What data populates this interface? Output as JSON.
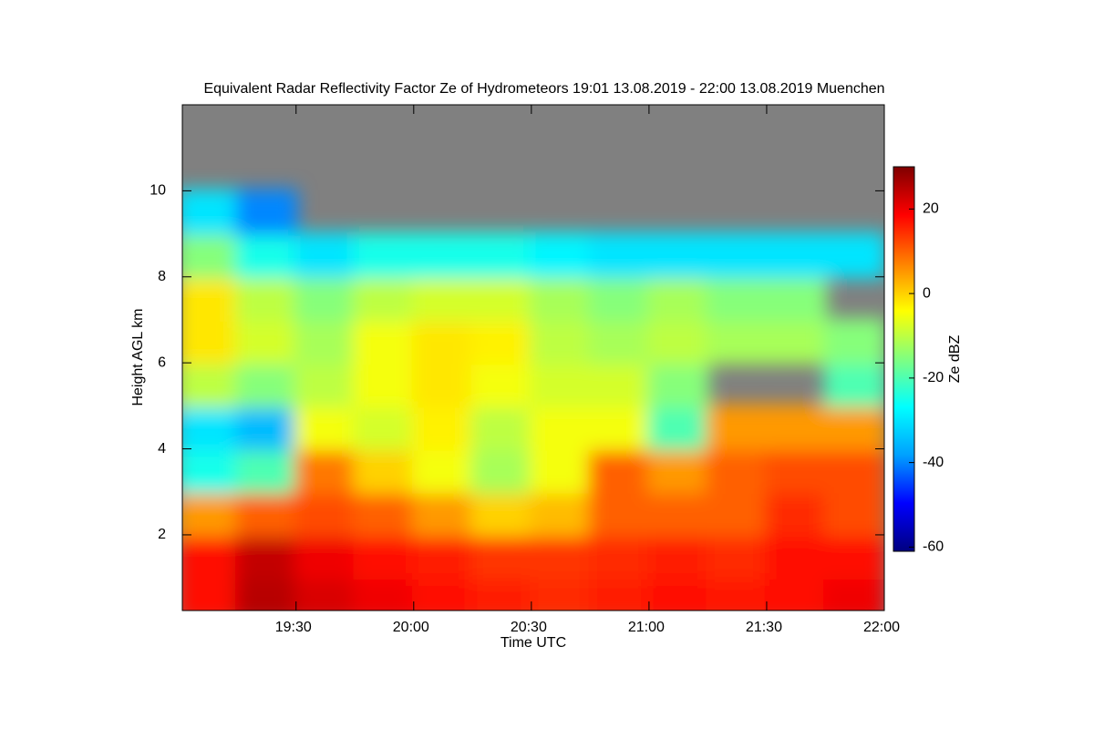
{
  "chart_data": {
    "type": "heatmap",
    "title": "Equivalent Radar Reflectivity Factor Ze of Hydrometeors   19:01 13.08.2019 - 22:00 13.08.2019 Muenchen",
    "x_label": "Time UTC",
    "y_label": "Height AGL km",
    "colorbar_label": "Ze dBZ",
    "xlim": [
      19.0167,
      22.0
    ],
    "xticks": [
      {
        "value": 19.5,
        "label": "19:30"
      },
      {
        "value": 20.0,
        "label": "20:00"
      },
      {
        "value": 20.5,
        "label": "20:30"
      },
      {
        "value": 21.0,
        "label": "21:00"
      },
      {
        "value": 21.5,
        "label": "21:30"
      },
      {
        "value": 22.0,
        "label": "22:00"
      }
    ],
    "ylim": [
      0.24,
      12
    ],
    "yticks": [
      2,
      4,
      6,
      8,
      10
    ],
    "zlim": [
      -61,
      30
    ],
    "zticks": [
      -60,
      -40,
      -20,
      0,
      20
    ],
    "colormap": [
      "#00007f",
      "#0000ff",
      "#00a0ff",
      "#00ffff",
      "#80ff80",
      "#ffff00",
      "#ff8000",
      "#ff0000",
      "#7f0000"
    ],
    "nodata_color": "#808080",
    "x": [
      19.125,
      19.375,
      19.625,
      19.875,
      20.125,
      20.375,
      20.625,
      20.875,
      21.125,
      21.375,
      21.625,
      21.875
    ],
    "y": [
      0.5,
      1.5,
      2.5,
      3.5,
      4.5,
      5.5,
      6.5,
      7.5,
      8.5,
      9.5,
      10.5,
      11.5
    ],
    "z": [
      [
        18,
        25,
        22,
        20,
        18,
        16,
        15,
        16,
        18,
        17,
        18,
        20
      ],
      [
        18,
        24,
        20,
        18,
        16,
        14,
        14,
        15,
        16,
        15,
        18,
        18
      ],
      [
        5,
        10,
        12,
        10,
        5,
        0,
        2,
        10,
        10,
        10,
        15,
        12
      ],
      [
        -25,
        -20,
        8,
        0,
        -5,
        -12,
        -5,
        10,
        5,
        10,
        12,
        12
      ],
      [
        -30,
        -35,
        -5,
        -8,
        -3,
        -10,
        -5,
        -5,
        -20,
        5,
        5,
        5
      ],
      [
        -10,
        -15,
        -10,
        -5,
        -2,
        -5,
        -8,
        -8,
        -15,
        null,
        null,
        -20
      ],
      [
        -2,
        -8,
        -12,
        -5,
        -2,
        -3,
        -10,
        -12,
        -10,
        -12,
        -12,
        -15
      ],
      [
        -2,
        -10,
        -15,
        -10,
        -8,
        -8,
        -12,
        -15,
        -12,
        -15,
        -15,
        null
      ],
      [
        -15,
        -25,
        -30,
        -25,
        -25,
        -25,
        -28,
        -30,
        -30,
        -30,
        -30,
        -30
      ],
      [
        -30,
        -40,
        null,
        null,
        null,
        null,
        null,
        null,
        null,
        null,
        null,
        null
      ],
      [
        null,
        null,
        null,
        null,
        null,
        null,
        null,
        null,
        null,
        null,
        null,
        null
      ],
      [
        null,
        null,
        null,
        null,
        null,
        null,
        null,
        null,
        null,
        null,
        null,
        null
      ]
    ]
  }
}
